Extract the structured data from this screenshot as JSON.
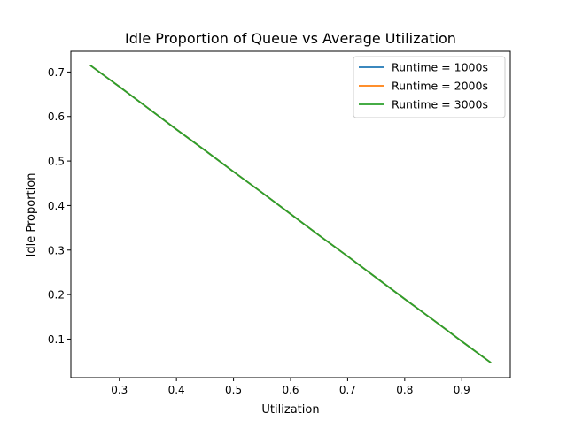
{
  "chart_data": {
    "type": "line",
    "title": "Idle Proportion of Queue vs Average Utilization",
    "xlabel": "Utilization",
    "ylabel": "Idle Proportion",
    "xlim": [
      0.215,
      0.985
    ],
    "ylim": [
      0.0135,
      0.7465
    ],
    "xticks": [
      0.3,
      0.4,
      0.5,
      0.6,
      0.7,
      0.8,
      0.9
    ],
    "yticks": [
      0.1,
      0.2,
      0.3,
      0.4,
      0.5,
      0.6,
      0.7
    ],
    "grid": false,
    "legend": "top-right",
    "x": [
      0.25,
      0.3,
      0.35,
      0.4,
      0.45,
      0.5,
      0.55,
      0.6,
      0.65,
      0.7,
      0.75,
      0.8,
      0.85,
      0.9,
      0.95
    ],
    "series": [
      {
        "name": "Runtime = 1000s",
        "color": "#1f77b4",
        "values": [
          0.714,
          0.667,
          0.619,
          0.571,
          0.524,
          0.476,
          0.429,
          0.381,
          0.333,
          0.286,
          0.238,
          0.19,
          0.143,
          0.095,
          0.048
        ]
      },
      {
        "name": "Runtime = 2000s",
        "color": "#ff7f0e",
        "values": [
          0.714,
          0.667,
          0.619,
          0.571,
          0.524,
          0.476,
          0.429,
          0.381,
          0.333,
          0.286,
          0.238,
          0.19,
          0.143,
          0.095,
          0.048
        ]
      },
      {
        "name": "Runtime = 3000s",
        "color": "#2ca02c",
        "values": [
          0.714,
          0.667,
          0.619,
          0.571,
          0.524,
          0.476,
          0.429,
          0.381,
          0.333,
          0.286,
          0.238,
          0.19,
          0.143,
          0.095,
          0.048
        ]
      }
    ]
  }
}
